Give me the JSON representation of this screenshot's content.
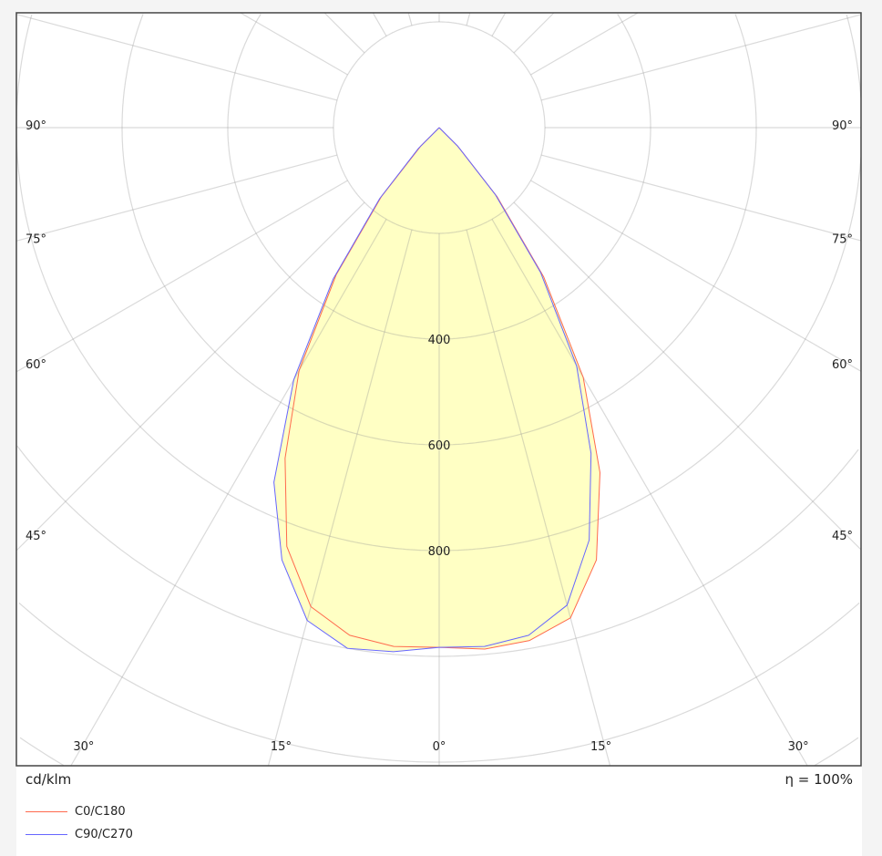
{
  "chart_data": {
    "type": "polar",
    "unit_label": "cd/klm",
    "efficiency_label": "η = 100%",
    "radial_ticks": [
      400,
      600,
      800
    ],
    "radial_rings": [
      200,
      400,
      600,
      800,
      1000,
      1200,
      1400,
      1600
    ],
    "angle_labels_side": [
      "90°",
      "75°",
      "60°",
      "45°"
    ],
    "angle_labels_bottom": [
      "30°",
      "15°",
      "0°",
      "15°",
      "30°"
    ],
    "gamma": [
      0,
      5,
      10,
      15,
      20,
      25,
      30,
      35,
      40,
      45,
      50,
      90
    ],
    "series": [
      {
        "name": "C0/C180",
        "color": "#ff6a4d",
        "left": [
          983,
          985,
          975,
          938,
          843,
          690,
          530,
          340,
          170,
          50,
          0,
          0
        ],
        "right": [
          983,
          990,
          985,
          960,
          870,
          720,
          545,
          345,
          170,
          50,
          0,
          0
        ]
      },
      {
        "name": "C90/C270",
        "color": "#6666ff",
        "left": [
          983,
          995,
          1000,
          965,
          870,
          740,
          550,
          350,
          175,
          55,
          0,
          0
        ],
        "right": [
          983,
          985,
          975,
          935,
          830,
          680,
          520,
          335,
          165,
          50,
          0,
          0
        ]
      }
    ],
    "fill_color": "#ffffc4",
    "grid": true
  }
}
